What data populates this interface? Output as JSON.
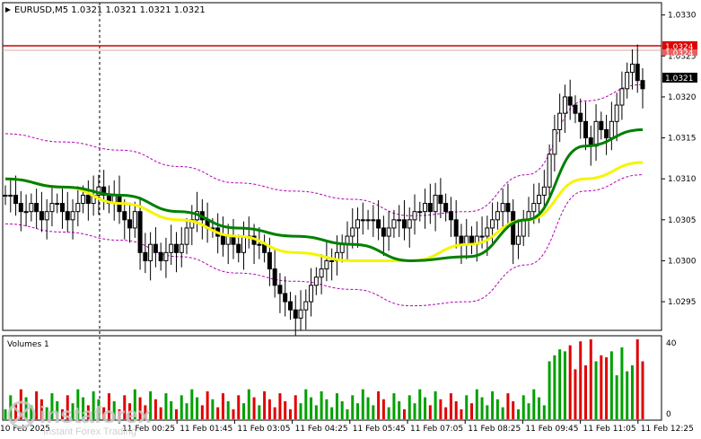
{
  "header": {
    "symbol_info": "EURUSD,M5  1.0321 1.0321 1.0321 1.0321"
  },
  "volumes_panel": {
    "label": "Volumes 1",
    "scale_top": "40",
    "scale_bottom": "0"
  },
  "price_badges": {
    "resistance": "1.0324",
    "resistance_shadow": "1.0324",
    "current": "1.0321"
  },
  "watermark": {
    "brand": "instaforex",
    "tagline": "Instant Forex Trading"
  },
  "colors": {
    "background": "#ffffff",
    "bull": "#000000",
    "ma_fast": "#008000",
    "ma_slow": "#f5f500",
    "bands": "#b400b4",
    "level_line": "#cc0000",
    "current_badge": "#000000",
    "level_badge": "#e00000",
    "vol_up": "#00a000",
    "vol_down": "#e00000"
  },
  "chart_data": {
    "type": "candlestick",
    "symbol": "EURUSD",
    "timeframe": "M5",
    "ylim": [
      1.02915,
      1.03315
    ],
    "y_ticks": [
      "1.0330",
      "1.0325",
      "1.0320",
      "1.0315",
      "1.0310",
      "1.0305",
      "1.0300",
      "1.0295"
    ],
    "x_ticks": [
      "11 Feb 00:25",
      "11 Feb 01:45",
      "11 Feb 03:05",
      "11 Feb 04:25",
      "11 Feb 05:45",
      "11 Feb 07:05",
      "11 Feb 08:25",
      "11 Feb 09:45",
      "11 Feb 11:05",
      "11 Feb 12:25"
    ],
    "x_ticks_partial_left": "10 Feb 2025",
    "horizontal_level": 1.0324,
    "last_price": 1.0321,
    "close_series": [
      1.0308,
      1.0308,
      1.0307,
      1.0306,
      1.0306,
      1.0307,
      1.0306,
      1.0305,
      1.0306,
      1.0307,
      1.0307,
      1.0306,
      1.0305,
      1.0306,
      1.0307,
      1.0308,
      1.0307,
      1.0308,
      1.0309,
      1.0308,
      1.0307,
      1.0308,
      1.0306,
      1.0305,
      1.0304,
      1.0306,
      1.0301,
      1.03,
      1.0302,
      1.0301,
      1.03,
      1.0301,
      1.0302,
      1.0301,
      1.0302,
      1.0304,
      1.0305,
      1.0306,
      1.0305,
      1.0304,
      1.0304,
      1.0303,
      1.0302,
      1.0303,
      1.0302,
      1.0301,
      1.0303,
      1.0303,
      1.0302,
      1.0302,
      1.0301,
      1.0299,
      1.0297,
      1.0296,
      1.0295,
      1.0294,
      1.0293,
      1.0294,
      1.0295,
      1.0297,
      1.0298,
      1.0299,
      1.03,
      1.03,
      1.0301,
      1.0302,
      1.0303,
      1.0304,
      1.0305,
      1.0305,
      1.0305,
      1.0305,
      1.0304,
      1.0303,
      1.0304,
      1.0305,
      1.0305,
      1.0304,
      1.0305,
      1.0306,
      1.0306,
      1.0307,
      1.0306,
      1.0308,
      1.0307,
      1.0306,
      1.0305,
      1.0303,
      1.0302,
      1.0303,
      1.0302,
      1.0303,
      1.0303,
      1.0304,
      1.0305,
      1.0306,
      1.0307,
      1.0306,
      1.0302,
      1.0303,
      1.0305,
      1.0306,
      1.0307,
      1.0308,
      1.0309,
      1.0313,
      1.0316,
      1.0318,
      1.032,
      1.0319,
      1.0318,
      1.0317,
      1.0315,
      1.0314,
      1.0317,
      1.0316,
      1.0315,
      1.0317,
      1.0319,
      1.0321,
      1.0323,
      1.0324,
      1.0322,
      1.0321
    ],
    "ma_fast": [
      1.031,
      1.0309,
      1.0308,
      1.0306,
      1.0304,
      1.0303,
      1.0302,
      1.03,
      1.03005,
      1.0305,
      1.0314,
      1.0316
    ],
    "ma_slow": [
      1.031,
      1.0309,
      1.0307,
      1.0305,
      1.0303,
      1.0301,
      1.03,
      1.03,
      1.0302,
      1.0305,
      1.031,
      1.0312
    ],
    "volumes_max": 40
  }
}
